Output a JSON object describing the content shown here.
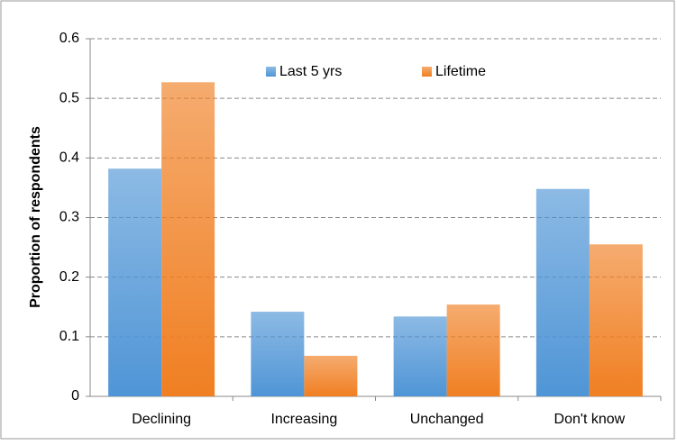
{
  "chart_data": {
    "type": "bar",
    "categories": [
      "Declining",
      "Increasing",
      "Unchanged",
      "Don't know"
    ],
    "series": [
      {
        "name": "Last 5 yrs",
        "color": "#4f95d6",
        "values": [
          0.382,
          0.142,
          0.134,
          0.348
        ]
      },
      {
        "name": "Lifetime",
        "color": "#f07f22",
        "values": [
          0.527,
          0.068,
          0.154,
          0.255
        ]
      }
    ],
    "y_label": "Proportion of respondents",
    "ylim": [
      0,
      0.6
    ],
    "yticks": [
      0,
      0.1,
      0.2,
      0.3,
      0.4,
      0.5,
      0.6
    ],
    "grid": true,
    "legend": "top"
  }
}
